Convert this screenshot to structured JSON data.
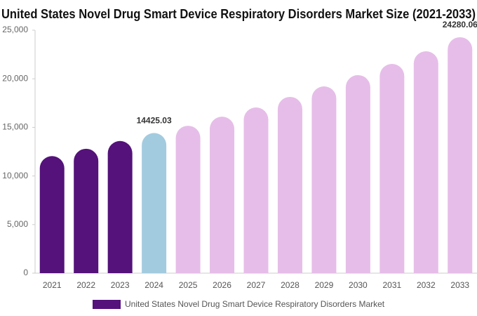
{
  "chart_data": {
    "type": "bar",
    "title": "United States Novel Drug Smart Device Respiratory Disorders Market Size (2021-2033)",
    "categories": [
      "2021",
      "2022",
      "2023",
      "2024",
      "2025",
      "2026",
      "2027",
      "2028",
      "2029",
      "2030",
      "2031",
      "2032",
      "2033"
    ],
    "series": [
      {
        "name": "United States Novel Drug Smart Device Respiratory Disorders Market",
        "color": "#54127a",
        "values": [
          12050,
          12800,
          13600,
          14425.03,
          15170,
          16100,
          17050,
          18140,
          19220,
          20380,
          21530,
          22830,
          24280.06
        ],
        "colors": [
          "#54127a",
          "#54127a",
          "#54127a",
          "#a3cbdf",
          "#e6bde8",
          "#e6bde8",
          "#e6bde8",
          "#e6bde8",
          "#e6bde8",
          "#e6bde8",
          "#e6bde8",
          "#e6bde8",
          "#e6bde8"
        ],
        "value_labels": [
          null,
          null,
          null,
          "14425.03",
          null,
          null,
          null,
          null,
          null,
          null,
          null,
          null,
          "24280.06"
        ]
      }
    ],
    "ylim": [
      0,
      25000
    ],
    "yticks": [
      0,
      {
        "value": 5000,
        "label": "5,000"
      },
      {
        "value": 10000,
        "label": "10,000"
      },
      {
        "value": 15000,
        "label": "15,000"
      },
      {
        "value": 20000,
        "label": "20,000"
      },
      {
        "value": 25000,
        "label": "25,000"
      }
    ],
    "grid": false
  }
}
